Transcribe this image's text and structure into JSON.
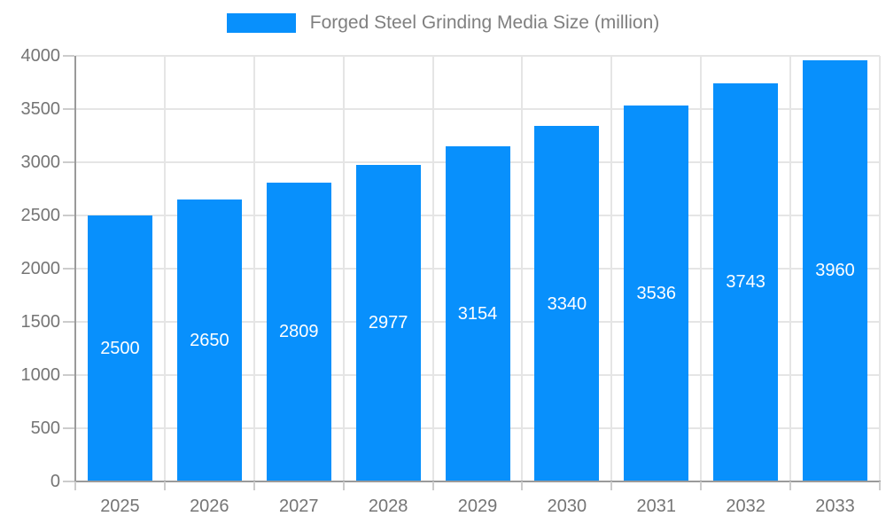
{
  "legend": {
    "label": "Forged Steel Grinding Media Size (million)"
  },
  "colors": {
    "bar": "#0890fc",
    "grid": "#e5e5e5",
    "axis": "#9a9a9a",
    "tick": "#cccccc",
    "axis_text": "#757575",
    "legend_text": "#7f7f7f",
    "bar_label_text": "#ffffff"
  },
  "chart_data": {
    "type": "bar",
    "title": "Forged Steel Grinding Media Size (million)",
    "categories": [
      "2025",
      "2026",
      "2027",
      "2028",
      "2029",
      "2030",
      "2031",
      "2032",
      "2033"
    ],
    "series": [
      {
        "name": "Forged Steel Grinding Media Size (million)",
        "values": [
          2500,
          2650,
          2809,
          2977,
          3154,
          3340,
          3536,
          3743,
          3960
        ]
      }
    ],
    "data_labels": [
      "2500",
      "2650",
      "2809",
      "2977",
      "3154",
      "3340",
      "3536",
      "3743",
      "3960"
    ],
    "xlabel": "",
    "ylabel": "",
    "ylim": [
      0,
      4000
    ],
    "ytick_step": 500,
    "yticks": [
      "0",
      "500",
      "1000",
      "1500",
      "2000",
      "2500",
      "3000",
      "3500",
      "4000"
    ],
    "grid": true,
    "legend_position": "top"
  }
}
